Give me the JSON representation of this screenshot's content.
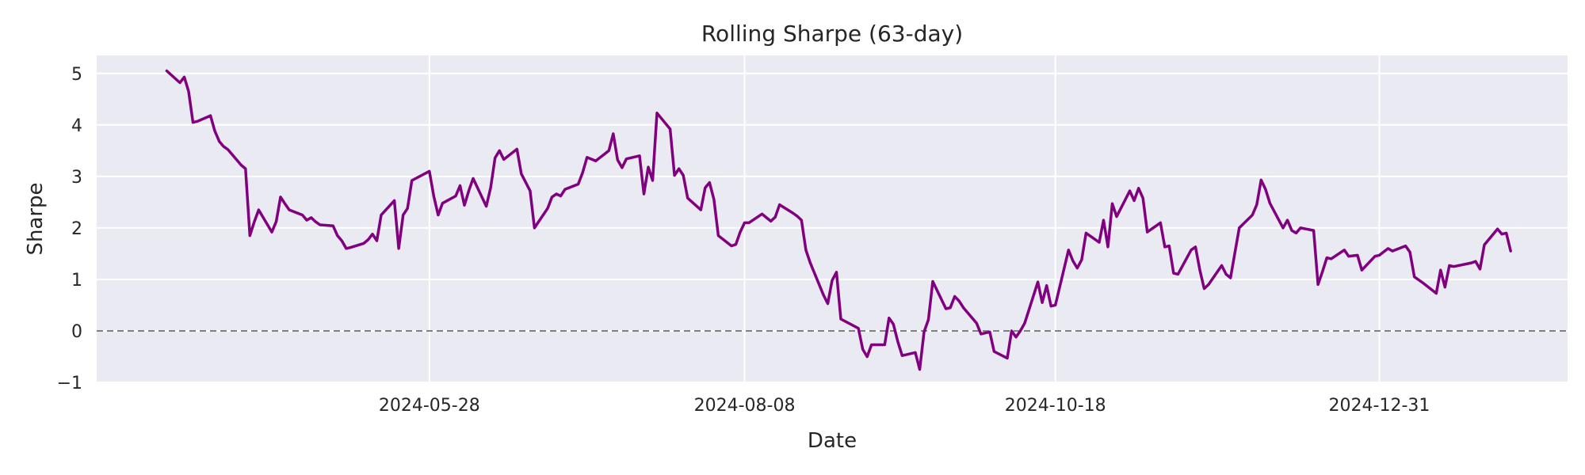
{
  "chart_data": {
    "type": "line",
    "title": "Rolling Sharpe (63-day)",
    "xlabel": "Date",
    "ylabel": "Sharpe",
    "x_tick_labels": [
      "2024-05-28",
      "2024-08-08",
      "2024-10-18",
      "2024-12-31"
    ],
    "y_ticks": [
      -1,
      0,
      1,
      2,
      3,
      4,
      5
    ],
    "y_tick_labels": [
      "−1",
      "0",
      "1",
      "2",
      "3",
      "4",
      "5"
    ],
    "xlim": [
      "2024-03-13",
      "2025-02-12"
    ],
    "ylim": [
      -1,
      5.35
    ],
    "grid": true,
    "reference_line": {
      "y": 0,
      "style": "dashed",
      "color": "#808080"
    },
    "series": [
      {
        "color": "#800080",
        "points": [
          [
            "2024-03-29",
            5.05
          ],
          [
            "2024-04-01",
            4.82
          ],
          [
            "2024-04-02",
            4.93
          ],
          [
            "2024-04-03",
            4.65
          ],
          [
            "2024-04-04",
            4.05
          ],
          [
            "2024-04-05",
            4.07
          ],
          [
            "2024-04-08",
            4.18
          ],
          [
            "2024-04-09",
            3.88
          ],
          [
            "2024-04-10",
            3.68
          ],
          [
            "2024-04-11",
            3.58
          ],
          [
            "2024-04-12",
            3.52
          ],
          [
            "2024-04-15",
            3.22
          ],
          [
            "2024-04-16",
            3.15
          ],
          [
            "2024-04-17",
            1.85
          ],
          [
            "2024-04-18",
            2.12
          ],
          [
            "2024-04-19",
            2.35
          ],
          [
            "2024-04-22",
            1.92
          ],
          [
            "2024-04-23",
            2.12
          ],
          [
            "2024-04-24",
            2.6
          ],
          [
            "2024-04-25",
            2.47
          ],
          [
            "2024-04-26",
            2.35
          ],
          [
            "2024-04-29",
            2.25
          ],
          [
            "2024-04-30",
            2.15
          ],
          [
            "2024-05-01",
            2.2
          ],
          [
            "2024-05-02",
            2.12
          ],
          [
            "2024-05-03",
            2.06
          ],
          [
            "2024-05-06",
            2.04
          ],
          [
            "2024-05-07",
            1.85
          ],
          [
            "2024-05-08",
            1.75
          ],
          [
            "2024-05-09",
            1.6
          ],
          [
            "2024-05-10",
            1.62
          ],
          [
            "2024-05-13",
            1.7
          ],
          [
            "2024-05-14",
            1.77
          ],
          [
            "2024-05-15",
            1.88
          ],
          [
            "2024-05-16",
            1.75
          ],
          [
            "2024-05-17",
            2.25
          ],
          [
            "2024-05-20",
            2.53
          ],
          [
            "2024-05-21",
            1.6
          ],
          [
            "2024-05-22",
            2.25
          ],
          [
            "2024-05-23",
            2.38
          ],
          [
            "2024-05-24",
            2.92
          ],
          [
            "2024-05-28",
            3.1
          ],
          [
            "2024-05-29",
            2.62
          ],
          [
            "2024-05-30",
            2.25
          ],
          [
            "2024-05-31",
            2.48
          ],
          [
            "2024-06-03",
            2.62
          ],
          [
            "2024-06-04",
            2.82
          ],
          [
            "2024-06-05",
            2.44
          ],
          [
            "2024-06-06",
            2.72
          ],
          [
            "2024-06-07",
            2.96
          ],
          [
            "2024-06-10",
            2.42
          ],
          [
            "2024-06-11",
            2.78
          ],
          [
            "2024-06-12",
            3.36
          ],
          [
            "2024-06-13",
            3.5
          ],
          [
            "2024-06-14",
            3.33
          ],
          [
            "2024-06-17",
            3.53
          ],
          [
            "2024-06-18",
            3.05
          ],
          [
            "2024-06-20",
            2.72
          ],
          [
            "2024-06-21",
            2.0
          ],
          [
            "2024-06-24",
            2.38
          ],
          [
            "2024-06-25",
            2.6
          ],
          [
            "2024-06-26",
            2.66
          ],
          [
            "2024-06-27",
            2.62
          ],
          [
            "2024-06-28",
            2.75
          ],
          [
            "2024-07-01",
            2.85
          ],
          [
            "2024-07-02",
            3.07
          ],
          [
            "2024-07-03",
            3.37
          ],
          [
            "2024-07-05",
            3.3
          ],
          [
            "2024-07-08",
            3.5
          ],
          [
            "2024-07-09",
            3.83
          ],
          [
            "2024-07-10",
            3.32
          ],
          [
            "2024-07-11",
            3.17
          ],
          [
            "2024-07-12",
            3.34
          ],
          [
            "2024-07-15",
            3.4
          ],
          [
            "2024-07-16",
            2.66
          ],
          [
            "2024-07-17",
            3.18
          ],
          [
            "2024-07-18",
            2.92
          ],
          [
            "2024-07-19",
            4.23
          ],
          [
            "2024-07-22",
            3.92
          ],
          [
            "2024-07-23",
            3.02
          ],
          [
            "2024-07-24",
            3.15
          ],
          [
            "2024-07-25",
            3.02
          ],
          [
            "2024-07-26",
            2.58
          ],
          [
            "2024-07-29",
            2.35
          ],
          [
            "2024-07-30",
            2.78
          ],
          [
            "2024-07-31",
            2.88
          ],
          [
            "2024-08-01",
            2.55
          ],
          [
            "2024-08-02",
            1.85
          ],
          [
            "2024-08-05",
            1.65
          ],
          [
            "2024-08-06",
            1.68
          ],
          [
            "2024-08-07",
            1.92
          ],
          [
            "2024-08-08",
            2.1
          ],
          [
            "2024-08-09",
            2.1
          ],
          [
            "2024-08-12",
            2.27
          ],
          [
            "2024-08-13",
            2.2
          ],
          [
            "2024-08-14",
            2.13
          ],
          [
            "2024-08-15",
            2.21
          ],
          [
            "2024-08-16",
            2.45
          ],
          [
            "2024-08-19",
            2.29
          ],
          [
            "2024-08-20",
            2.23
          ],
          [
            "2024-08-21",
            2.15
          ],
          [
            "2024-08-22",
            1.57
          ],
          [
            "2024-08-23",
            1.32
          ],
          [
            "2024-08-26",
            0.7
          ],
          [
            "2024-08-27",
            0.53
          ],
          [
            "2024-08-28",
            0.98
          ],
          [
            "2024-08-29",
            1.14
          ],
          [
            "2024-08-30",
            0.23
          ],
          [
            "2024-09-03",
            0.05
          ],
          [
            "2024-09-04",
            -0.36
          ],
          [
            "2024-09-05",
            -0.5
          ],
          [
            "2024-09-06",
            -0.27
          ],
          [
            "2024-09-09",
            -0.27
          ],
          [
            "2024-09-10",
            0.25
          ],
          [
            "2024-09-11",
            0.13
          ],
          [
            "2024-09-12",
            -0.21
          ],
          [
            "2024-09-13",
            -0.48
          ],
          [
            "2024-09-16",
            -0.42
          ],
          [
            "2024-09-17",
            -0.75
          ],
          [
            "2024-09-18",
            -0.02
          ],
          [
            "2024-09-19",
            0.22
          ],
          [
            "2024-09-20",
            0.96
          ],
          [
            "2024-09-23",
            0.43
          ],
          [
            "2024-09-24",
            0.45
          ],
          [
            "2024-09-25",
            0.67
          ],
          [
            "2024-09-26",
            0.58
          ],
          [
            "2024-09-27",
            0.45
          ],
          [
            "2024-09-30",
            0.15
          ],
          [
            "2024-10-01",
            -0.06
          ],
          [
            "2024-10-02",
            -0.04
          ],
          [
            "2024-10-03",
            -0.02
          ],
          [
            "2024-10-04",
            -0.4
          ],
          [
            "2024-10-07",
            -0.53
          ],
          [
            "2024-10-08",
            0.0
          ],
          [
            "2024-10-09",
            -0.12
          ],
          [
            "2024-10-10",
            0.0
          ],
          [
            "2024-10-11",
            0.15
          ],
          [
            "2024-10-14",
            0.95
          ],
          [
            "2024-10-15",
            0.55
          ],
          [
            "2024-10-16",
            0.88
          ],
          [
            "2024-10-17",
            0.48
          ],
          [
            "2024-10-18",
            0.5
          ],
          [
            "2024-10-21",
            1.57
          ],
          [
            "2024-10-22",
            1.36
          ],
          [
            "2024-10-23",
            1.22
          ],
          [
            "2024-10-24",
            1.38
          ],
          [
            "2024-10-25",
            1.9
          ],
          [
            "2024-10-28",
            1.72
          ],
          [
            "2024-10-29",
            2.15
          ],
          [
            "2024-10-30",
            1.63
          ],
          [
            "2024-10-31",
            2.47
          ],
          [
            "2024-11-01",
            2.22
          ],
          [
            "2024-11-04",
            2.72
          ],
          [
            "2024-11-05",
            2.53
          ],
          [
            "2024-11-06",
            2.77
          ],
          [
            "2024-11-07",
            2.58
          ],
          [
            "2024-11-08",
            1.92
          ],
          [
            "2024-11-11",
            2.1
          ],
          [
            "2024-11-12",
            1.63
          ],
          [
            "2024-11-13",
            1.65
          ],
          [
            "2024-11-14",
            1.12
          ],
          [
            "2024-11-15",
            1.1
          ],
          [
            "2024-11-18",
            1.57
          ],
          [
            "2024-11-19",
            1.63
          ],
          [
            "2024-11-20",
            1.18
          ],
          [
            "2024-11-21",
            0.82
          ],
          [
            "2024-11-22",
            0.9
          ],
          [
            "2024-11-25",
            1.27
          ],
          [
            "2024-11-26",
            1.1
          ],
          [
            "2024-11-27",
            1.03
          ],
          [
            "2024-11-29",
            2.0
          ],
          [
            "2024-12-02",
            2.25
          ],
          [
            "2024-12-03",
            2.45
          ],
          [
            "2024-12-04",
            2.93
          ],
          [
            "2024-12-05",
            2.75
          ],
          [
            "2024-12-06",
            2.48
          ],
          [
            "2024-12-09",
            2.0
          ],
          [
            "2024-12-10",
            2.15
          ],
          [
            "2024-12-11",
            1.95
          ],
          [
            "2024-12-12",
            1.9
          ],
          [
            "2024-12-13",
            2.0
          ],
          [
            "2024-12-16",
            1.95
          ],
          [
            "2024-12-17",
            0.9
          ],
          [
            "2024-12-18",
            1.15
          ],
          [
            "2024-12-19",
            1.42
          ],
          [
            "2024-12-20",
            1.4
          ],
          [
            "2024-12-23",
            1.57
          ],
          [
            "2024-12-24",
            1.45
          ],
          [
            "2024-12-26",
            1.47
          ],
          [
            "2024-12-27",
            1.18
          ],
          [
            "2024-12-30",
            1.45
          ],
          [
            "2024-12-31",
            1.47
          ],
          [
            "2025-01-02",
            1.6
          ],
          [
            "2025-01-03",
            1.55
          ],
          [
            "2025-01-06",
            1.65
          ],
          [
            "2025-01-07",
            1.53
          ],
          [
            "2025-01-08",
            1.05
          ],
          [
            "2025-01-10",
            0.93
          ],
          [
            "2025-01-13",
            0.73
          ],
          [
            "2025-01-14",
            1.18
          ],
          [
            "2025-01-15",
            0.85
          ],
          [
            "2025-01-16",
            1.27
          ],
          [
            "2025-01-17",
            1.25
          ],
          [
            "2025-01-21",
            1.32
          ],
          [
            "2025-01-22",
            1.35
          ],
          [
            "2025-01-23",
            1.2
          ],
          [
            "2025-01-24",
            1.67
          ],
          [
            "2025-01-27",
            1.98
          ],
          [
            "2025-01-28",
            1.88
          ],
          [
            "2025-01-29",
            1.9
          ],
          [
            "2025-01-30",
            1.55
          ]
        ]
      }
    ]
  }
}
